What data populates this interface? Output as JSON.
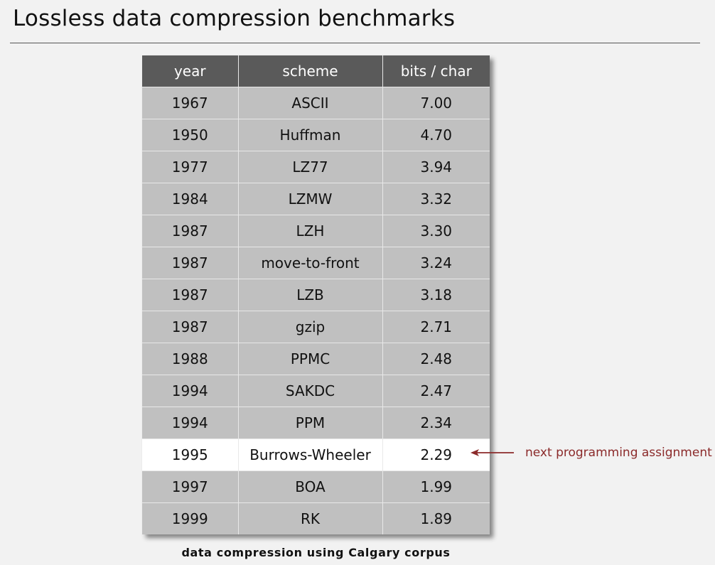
{
  "title": "Lossless data compression benchmarks",
  "table": {
    "headers": [
      "year",
      "scheme",
      "bits / char"
    ],
    "rows": [
      {
        "year": "1967",
        "scheme": "ASCII",
        "bits": "7.00"
      },
      {
        "year": "1950",
        "scheme": "Huffman",
        "bits": "4.70"
      },
      {
        "year": "1977",
        "scheme": "LZ77",
        "bits": "3.94"
      },
      {
        "year": "1984",
        "scheme": "LZMW",
        "bits": "3.32"
      },
      {
        "year": "1987",
        "scheme": "LZH",
        "bits": "3.30"
      },
      {
        "year": "1987",
        "scheme": "move-to-front",
        "bits": "3.24"
      },
      {
        "year": "1987",
        "scheme": "LZB",
        "bits": "3.18"
      },
      {
        "year": "1987",
        "scheme": "gzip",
        "bits": "2.71"
      },
      {
        "year": "1988",
        "scheme": "PPMC",
        "bits": "2.48"
      },
      {
        "year": "1994",
        "scheme": "SAKDC",
        "bits": "2.47"
      },
      {
        "year": "1994",
        "scheme": "PPM",
        "bits": "2.34"
      },
      {
        "year": "1995",
        "scheme": "Burrows-Wheeler",
        "bits": "2.29"
      },
      {
        "year": "1997",
        "scheme": "BOA",
        "bits": "1.99"
      },
      {
        "year": "1999",
        "scheme": "RK",
        "bits": "1.89"
      }
    ],
    "highlight_row_index": 11
  },
  "annotation": {
    "text": "next programming assignment",
    "color": "#8b2a2a",
    "icon": "left-arrow-icon"
  },
  "caption": "data compression using Calgary corpus",
  "colors": {
    "header_bg": "#5a5a5a",
    "row_bg": "#c0c0c0",
    "highlight_bg": "#ffffff",
    "page_bg": "#f2f2f2"
  }
}
